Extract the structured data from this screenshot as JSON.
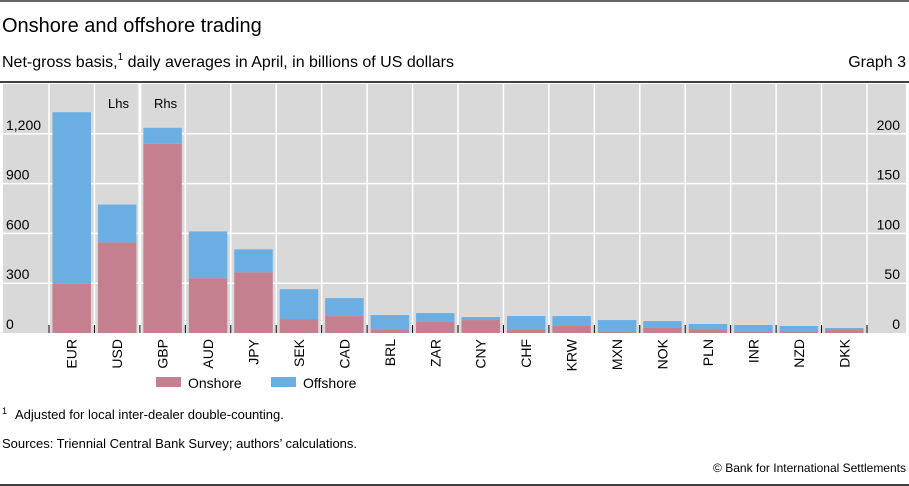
{
  "header": {
    "title": "Onshore and offshore trading",
    "subtitle_pre": "Net-gross basis,",
    "subtitle_sup": "1",
    "subtitle_post": " daily averages in April, in billions of US dollars",
    "graph_label": "Graph 3"
  },
  "footer": {
    "footnote_mark": "1",
    "footnote": "Adjusted for local inter-dealer double-counting.",
    "sources": "Sources: Triennial Central Bank Survey; authors’ calculations.",
    "copyright": "© Bank for International Settlements"
  },
  "colors": {
    "onshore": "#c4808f",
    "offshore": "#6aaee2",
    "plot_bg": "#d9d9d9",
    "grid": "#ffffff"
  },
  "chart_data": {
    "type": "bar",
    "stacked": true,
    "categories": [
      "EUR",
      "USD",
      "GBP",
      "AUD",
      "JPY",
      "SEK",
      "CAD",
      "BRL",
      "ZAR",
      "CNY",
      "CHF",
      "KRW",
      "MXN",
      "NOK",
      "PLN",
      "INR",
      "NZD",
      "DKK"
    ],
    "axis": [
      "left",
      "left",
      "right",
      "right",
      "right",
      "right",
      "right",
      "right",
      "right",
      "right",
      "right",
      "right",
      "right",
      "right",
      "right",
      "right",
      "right",
      "right"
    ],
    "series": [
      {
        "name": "Onshore",
        "values": [
          300,
          546,
          190,
          55,
          61,
          14,
          17,
          3,
          11,
          13,
          3,
          7,
          1,
          5,
          3,
          1,
          1,
          3
        ]
      },
      {
        "name": "Offshore",
        "values": [
          1030,
          228,
          16,
          47,
          23,
          30,
          18,
          15,
          9,
          3,
          14,
          10,
          12,
          7,
          6,
          7,
          6,
          2
        ]
      }
    ],
    "left_axis": {
      "label": "Lhs",
      "ylim": [
        0,
        1500
      ],
      "ticks": [
        0,
        300,
        600,
        900,
        1200
      ],
      "tick_labels": [
        "0",
        "300",
        "600",
        "900",
        "1,200"
      ]
    },
    "right_axis": {
      "label": "Rhs",
      "ylim": [
        0,
        250
      ],
      "ticks": [
        0,
        50,
        100,
        150,
        200
      ],
      "tick_labels": [
        "0",
        "50",
        "100",
        "150",
        "200"
      ]
    },
    "grid": true,
    "legend": {
      "placement": "bottom",
      "entries": [
        "Onshore",
        "Offshore"
      ]
    }
  }
}
